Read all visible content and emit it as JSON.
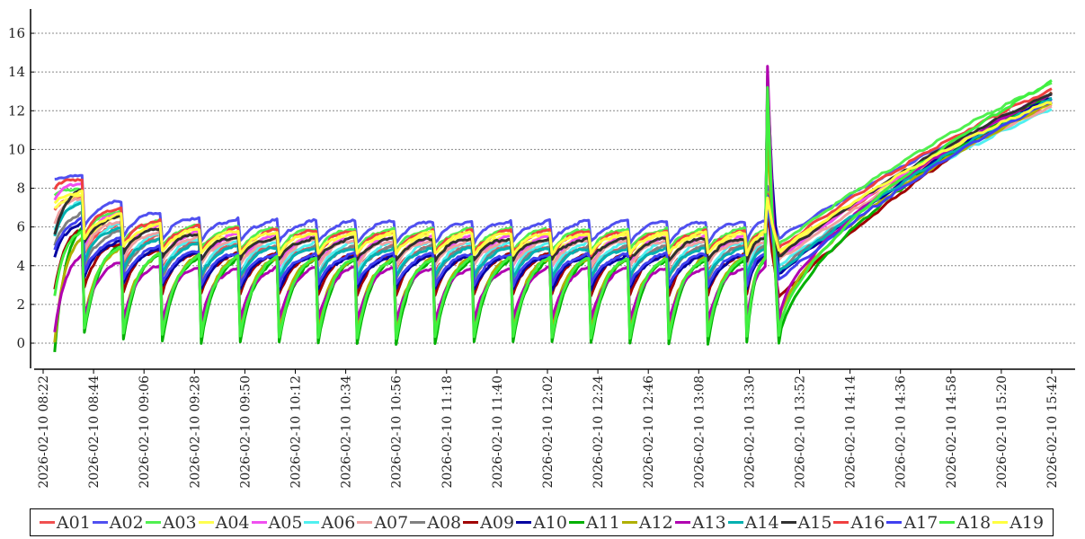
{
  "chart_data": {
    "type": "line",
    "title": "",
    "xlabel": "",
    "ylabel": "",
    "ylim": [
      -1.2,
      17.2
    ],
    "yticks": [
      0,
      2,
      4,
      6,
      8,
      10,
      12,
      14,
      16
    ],
    "grid": "horizontal dotted",
    "legend_position": "bottom",
    "x_start": "2026-02-10 08:22",
    "x_end": "2026-02-10 15:42",
    "xtick_labels": [
      "2026-02-10 08:22",
      "2026-02-10 08:44",
      "2026-02-10 09:06",
      "2026-02-10 09:28",
      "2026-02-10 09:50",
      "2026-02-10 10:12",
      "2026-02-10 10:34",
      "2026-02-10 10:56",
      "2026-02-10 11:18",
      "2026-02-10 11:40",
      "2026-02-10 12:02",
      "2026-02-10 12:24",
      "2026-02-10 12:46",
      "2026-02-10 13:08",
      "2026-02-10 13:30",
      "2026-02-10 13:52",
      "2026-02-10 14:14",
      "2026-02-10 14:36",
      "2026-02-10 14:58",
      "2026-02-10 15:20",
      "2026-02-10 15:42"
    ],
    "series_model": {
      "data_start": "08:27",
      "reset_times": [
        "08:40",
        "08:57",
        "09:14",
        "09:31",
        "09:48",
        "10:05",
        "10:22",
        "10:39",
        "10:56",
        "11:13",
        "11:30",
        "11:47",
        "12:04",
        "12:21",
        "12:38",
        "12:55",
        "13:12",
        "13:29"
      ],
      "spike_time": "13:38",
      "post_spike_time": "13:43",
      "end_time": "15:42"
    },
    "series": [
      {
        "name": "A01",
        "color": "#f05050",
        "start": 6.8,
        "peak": 5.0,
        "trough": 3.6,
        "excess": 2.6,
        "spike": 7.6,
        "post": 4.6,
        "end": 12.3
      },
      {
        "name": "A02",
        "color": "#5050f0",
        "start": 8.5,
        "peak": 6.3,
        "trough": 5.2,
        "excess": 2.3,
        "spike": 8.1,
        "post": 5.4,
        "end": 12.6
      },
      {
        "name": "A03",
        "color": "#50f050",
        "start": 7.6,
        "peak": 5.9,
        "trough": 4.8,
        "excess": 2.1,
        "spike": 7.8,
        "post": 5.1,
        "end": 13.4
      },
      {
        "name": "A04",
        "color": "#ffff50",
        "start": 7.0,
        "peak": 5.6,
        "trough": 4.2,
        "excess": 2.0,
        "spike": 7.4,
        "post": 4.7,
        "end": 12.4
      },
      {
        "name": "A05",
        "color": "#f050f0",
        "start": 7.4,
        "peak": 5.5,
        "trough": 4.0,
        "excess": 2.8,
        "spike": 7.5,
        "post": 4.4,
        "end": 12.8
      },
      {
        "name": "A06",
        "color": "#50f0f0",
        "start": 5.8,
        "peak": 5.2,
        "trough": 3.5,
        "excess": 2.1,
        "spike": 7.2,
        "post": 4.0,
        "end": 12.1
      },
      {
        "name": "A07",
        "color": "#f0a0a0",
        "start": 6.2,
        "peak": 5.3,
        "trough": 4.0,
        "excess": 2.2,
        "spike": 7.3,
        "post": 4.3,
        "end": 12.2
      },
      {
        "name": "A08",
        "color": "#808080",
        "start": 5.0,
        "peak": 5.0,
        "trough": 3.3,
        "excess": 1.7,
        "spike": 7.0,
        "post": 3.8,
        "end": 12.5
      },
      {
        "name": "A09",
        "color": "#a00000",
        "start": 2.8,
        "peak": 4.6,
        "trough": 2.5,
        "excess": 1.3,
        "spike": 7.0,
        "post": 2.4,
        "end": 12.9
      },
      {
        "name": "A10",
        "color": "#0000a0",
        "start": 4.4,
        "peak": 4.5,
        "trough": 2.8,
        "excess": 1.7,
        "spike": 13.4,
        "post": 3.6,
        "end": 12.7
      },
      {
        "name": "A11",
        "color": "#00b000",
        "start": -0.4,
        "peak": 4.3,
        "trough": 0.0,
        "excess": 1.6,
        "spike": 13.8,
        "post": 0.0,
        "end": 12.9
      },
      {
        "name": "A12",
        "color": "#b0b000",
        "start": 0.0,
        "peak": 4.4,
        "trough": 0.8,
        "excess": 1.1,
        "spike": 11.0,
        "post": 1.0,
        "end": 12.4
      },
      {
        "name": "A13",
        "color": "#b000b0",
        "start": 0.6,
        "peak": 3.9,
        "trough": 1.2,
        "excess": 0.6,
        "spike": 14.3,
        "post": 1.2,
        "end": 12.9
      },
      {
        "name": "A14",
        "color": "#00b0b0",
        "start": 5.5,
        "peak": 4.9,
        "trough": 3.4,
        "excess": 2.4,
        "spike": 7.3,
        "post": 3.7,
        "end": 12.6
      },
      {
        "name": "A15",
        "color": "#303030",
        "start": 5.6,
        "peak": 5.4,
        "trough": 4.3,
        "excess": 2.5,
        "spike": 7.4,
        "post": 4.5,
        "end": 12.9
      },
      {
        "name": "A16",
        "color": "#f04040",
        "start": 8.0,
        "peak": 5.8,
        "trough": 4.6,
        "excess": 2.7,
        "spike": 7.7,
        "post": 4.9,
        "end": 13.1
      },
      {
        "name": "A17",
        "color": "#4040f0",
        "start": 4.8,
        "peak": 4.6,
        "trough": 3.0,
        "excess": 1.8,
        "spike": 7.6,
        "post": 3.3,
        "end": 12.5
      },
      {
        "name": "A18",
        "color": "#40f040",
        "start": 2.5,
        "peak": 4.4,
        "trough": 0.3,
        "excess": 1.4,
        "spike": 13.2,
        "post": 0.4,
        "end": 13.5
      },
      {
        "name": "A19",
        "color": "#ffff40",
        "start": 7.2,
        "peak": 5.7,
        "trough": 4.6,
        "excess": 2.1,
        "spike": 7.5,
        "post": 4.8,
        "end": 12.5
      }
    ]
  }
}
